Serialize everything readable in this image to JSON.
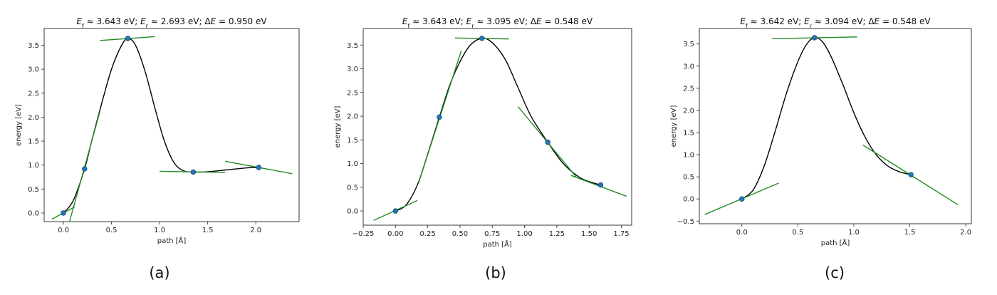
{
  "figure": {
    "panel_labels": [
      "(a)",
      "(b)",
      "(c)"
    ]
  },
  "chart_data": [
    {
      "type": "line",
      "panel": "(a)",
      "title_parts": [
        {
          "t": "E",
          "it": true
        },
        {
          "t": "f",
          "sub": true
        },
        {
          "t": " ≈ 3.643 eV; "
        },
        {
          "t": "E",
          "it": true
        },
        {
          "t": "r",
          "sub": true
        },
        {
          "t": " ≈ 2.693 eV; Δ"
        },
        {
          "t": "E",
          "it": true
        },
        {
          "t": " = 0.950 eV"
        }
      ],
      "xlabel": "path [Å]",
      "ylabel": "energy [eV]",
      "xlim": [
        -0.2,
        2.45
      ],
      "ylim": [
        -0.18,
        3.85
      ],
      "xticks": [
        0.0,
        0.5,
        1.0,
        1.5,
        2.0
      ],
      "xtick_labels": [
        "0.0",
        "0.5",
        "1.0",
        "1.5",
        "2.0"
      ],
      "yticks": [
        0.0,
        0.5,
        1.0,
        1.5,
        2.0,
        2.5,
        3.0,
        3.5
      ],
      "ytick_labels": [
        "0.0",
        "0.5",
        "1.0",
        "1.5",
        "2.0",
        "2.5",
        "3.0",
        "3.5"
      ],
      "points": [
        {
          "x": 0.0,
          "y": 0.0
        },
        {
          "x": 0.22,
          "y": 0.92
        },
        {
          "x": 0.67,
          "y": 3.643
        },
        {
          "x": 1.35,
          "y": 0.855
        },
        {
          "x": 2.03,
          "y": 0.95
        }
      ],
      "curve": [
        {
          "x": 0.0,
          "y": 0.0
        },
        {
          "x": 0.1,
          "y": 0.25
        },
        {
          "x": 0.22,
          "y": 0.92
        },
        {
          "x": 0.3,
          "y": 1.55
        },
        {
          "x": 0.4,
          "y": 2.3
        },
        {
          "x": 0.5,
          "y": 3.0
        },
        {
          "x": 0.6,
          "y": 3.48
        },
        {
          "x": 0.67,
          "y": 3.643
        },
        {
          "x": 0.75,
          "y": 3.5
        },
        {
          "x": 0.85,
          "y": 2.95
        },
        {
          "x": 0.95,
          "y": 2.2
        },
        {
          "x": 1.05,
          "y": 1.5
        },
        {
          "x": 1.15,
          "y": 1.05
        },
        {
          "x": 1.25,
          "y": 0.88
        },
        {
          "x": 1.35,
          "y": 0.855
        },
        {
          "x": 1.5,
          "y": 0.86
        },
        {
          "x": 1.7,
          "y": 0.9
        },
        {
          "x": 1.9,
          "y": 0.94
        },
        {
          "x": 2.03,
          "y": 0.95
        }
      ],
      "tangents": [
        {
          "x1": -0.12,
          "y1": -0.13,
          "x2": 0.12,
          "y2": 0.13
        },
        {
          "x1": 0.05,
          "y1": -0.28,
          "x2": 0.38,
          "y2": 2.12
        },
        {
          "x1": 0.38,
          "y1": 3.6,
          "x2": 0.95,
          "y2": 3.68
        },
        {
          "x1": 1.0,
          "y1": 0.87,
          "x2": 1.68,
          "y2": 0.845
        },
        {
          "x1": 1.68,
          "y1": 1.08,
          "x2": 2.38,
          "y2": 0.82
        }
      ]
    },
    {
      "type": "line",
      "panel": "(b)",
      "title_parts": [
        {
          "t": "E",
          "it": true
        },
        {
          "t": "f",
          "sub": true
        },
        {
          "t": " ≈ 3.643 eV; "
        },
        {
          "t": "E",
          "it": true
        },
        {
          "t": "r",
          "sub": true
        },
        {
          "t": " ≈ 3.095 eV; Δ"
        },
        {
          "t": "E",
          "it": true
        },
        {
          "t": " = 0.548 eV"
        }
      ],
      "xlabel": "path [Å]",
      "ylabel": "energy [eV]",
      "xlim": [
        -0.25,
        1.83
      ],
      "ylim": [
        -0.3,
        3.85
      ],
      "xticks": [
        -0.25,
        0.0,
        0.25,
        0.5,
        0.75,
        1.0,
        1.25,
        1.5,
        1.75
      ],
      "xtick_labels": [
        "−0.25",
        "0.00",
        "0.25",
        "0.50",
        "0.75",
        "1.00",
        "1.25",
        "1.50",
        "1.75"
      ],
      "yticks": [
        0.0,
        0.5,
        1.0,
        1.5,
        2.0,
        2.5,
        3.0,
        3.5
      ],
      "ytick_labels": [
        "0.0",
        "0.5",
        "1.0",
        "1.5",
        "2.0",
        "2.5",
        "3.0",
        "3.5"
      ],
      "points": [
        {
          "x": 0.0,
          "y": 0.0
        },
        {
          "x": 0.34,
          "y": 1.98
        },
        {
          "x": 0.67,
          "y": 3.643
        },
        {
          "x": 1.18,
          "y": 1.45
        },
        {
          "x": 1.59,
          "y": 0.548
        }
      ],
      "curve": [
        {
          "x": 0.0,
          "y": 0.0
        },
        {
          "x": 0.08,
          "y": 0.12
        },
        {
          "x": 0.17,
          "y": 0.55
        },
        {
          "x": 0.25,
          "y": 1.2
        },
        {
          "x": 0.34,
          "y": 1.98
        },
        {
          "x": 0.42,
          "y": 2.65
        },
        {
          "x": 0.5,
          "y": 3.15
        },
        {
          "x": 0.58,
          "y": 3.5
        },
        {
          "x": 0.67,
          "y": 3.643
        },
        {
          "x": 0.75,
          "y": 3.55
        },
        {
          "x": 0.85,
          "y": 3.2
        },
        {
          "x": 0.95,
          "y": 2.6
        },
        {
          "x": 1.05,
          "y": 2.0
        },
        {
          "x": 1.18,
          "y": 1.45
        },
        {
          "x": 1.3,
          "y": 1.0
        },
        {
          "x": 1.42,
          "y": 0.72
        },
        {
          "x": 1.5,
          "y": 0.62
        },
        {
          "x": 1.59,
          "y": 0.548
        }
      ],
      "tangents": [
        {
          "x1": -0.17,
          "y1": -0.2,
          "x2": 0.17,
          "y2": 0.22
        },
        {
          "x1": 0.18,
          "y1": 0.6,
          "x2": 0.51,
          "y2": 3.38
        },
        {
          "x1": 0.46,
          "y1": 3.65,
          "x2": 0.88,
          "y2": 3.63
        },
        {
          "x1": 0.95,
          "y1": 2.2,
          "x2": 1.4,
          "y2": 0.72
        },
        {
          "x1": 1.36,
          "y1": 0.75,
          "x2": 1.79,
          "y2": 0.31
        }
      ]
    },
    {
      "type": "line",
      "panel": "(c)",
      "title_parts": [
        {
          "t": "E",
          "it": true
        },
        {
          "t": "f",
          "sub": true
        },
        {
          "t": " ≈ 3.642 eV; "
        },
        {
          "t": "E",
          "it": true
        },
        {
          "t": "r",
          "sub": true
        },
        {
          "t": " ≈ 3.094 eV; Δ"
        },
        {
          "t": "E",
          "it": true
        },
        {
          "t": " = 0.548 eV"
        }
      ],
      "xlabel": "path [Å]",
      "ylabel": "energy [eV]",
      "xlim": [
        -0.38,
        2.05
      ],
      "ylim": [
        -0.56,
        3.85
      ],
      "xticks": [
        0.0,
        0.5,
        1.0,
        1.5,
        2.0
      ],
      "xtick_labels": [
        "0.0",
        "0.5",
        "1.0",
        "1.5",
        "2.0"
      ],
      "yticks": [
        -0.5,
        0.0,
        0.5,
        1.0,
        1.5,
        2.0,
        2.5,
        3.0,
        3.5
      ],
      "ytick_labels": [
        "−0.5",
        "0.0",
        "0.5",
        "1.0",
        "1.5",
        "2.0",
        "2.5",
        "3.0",
        "3.5"
      ],
      "points": [
        {
          "x": 0.0,
          "y": 0.0
        },
        {
          "x": 0.65,
          "y": 3.642
        },
        {
          "x": 1.51,
          "y": 0.548
        }
      ],
      "curve": [
        {
          "x": 0.0,
          "y": 0.0
        },
        {
          "x": 0.1,
          "y": 0.2
        },
        {
          "x": 0.2,
          "y": 0.75
        },
        {
          "x": 0.3,
          "y": 1.55
        },
        {
          "x": 0.4,
          "y": 2.4
        },
        {
          "x": 0.5,
          "y": 3.1
        },
        {
          "x": 0.58,
          "y": 3.5
        },
        {
          "x": 0.65,
          "y": 3.642
        },
        {
          "x": 0.72,
          "y": 3.55
        },
        {
          "x": 0.8,
          "y": 3.2
        },
        {
          "x": 0.9,
          "y": 2.6
        },
        {
          "x": 1.0,
          "y": 1.95
        },
        {
          "x": 1.1,
          "y": 1.4
        },
        {
          "x": 1.2,
          "y": 1.0
        },
        {
          "x": 1.3,
          "y": 0.75
        },
        {
          "x": 1.4,
          "y": 0.62
        },
        {
          "x": 1.51,
          "y": 0.548
        }
      ],
      "tangents": [
        {
          "x1": -0.33,
          "y1": -0.35,
          "x2": 0.33,
          "y2": 0.36
        },
        {
          "x1": 0.27,
          "y1": 3.62,
          "x2": 1.03,
          "y2": 3.66
        },
        {
          "x1": 1.08,
          "y1": 1.22,
          "x2": 1.93,
          "y2": -0.13
        }
      ]
    }
  ]
}
